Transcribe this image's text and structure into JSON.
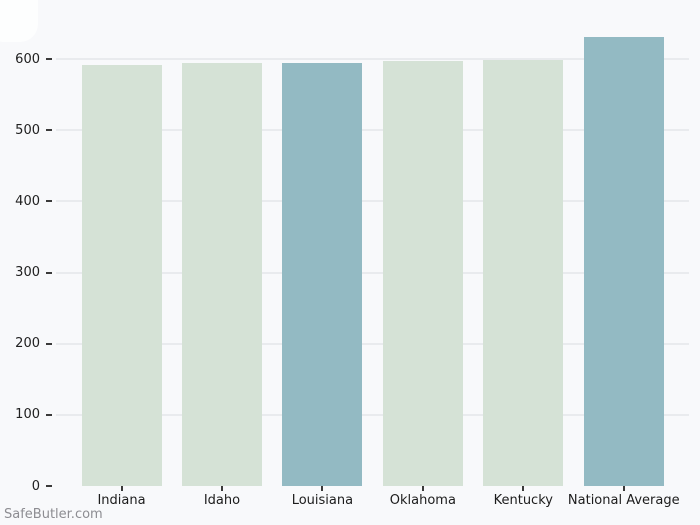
{
  "chart_data": {
    "type": "bar",
    "categories": [
      "Indiana",
      "Idaho",
      "Louisiana",
      "Oklahoma",
      "Kentucky",
      "National Average"
    ],
    "values": [
      592,
      595,
      595,
      597,
      599,
      631
    ],
    "bar_colors": [
      "#d5e2d6",
      "#d5e2d6",
      "#93bac3",
      "#d5e2d6",
      "#d5e2d6",
      "#93bac3"
    ],
    "title": "",
    "xlabel": "",
    "ylabel": "",
    "yticks": [
      0,
      100,
      200,
      300,
      400,
      500,
      600
    ],
    "ylim": [
      0,
      672
    ],
    "grid": "horizontal-light",
    "legend": "none",
    "colors": {
      "bar_green": "#d5e2d6",
      "bar_blue": "#93bac3",
      "background": "#f8f9fb",
      "gridline": "#e9ebee",
      "tick_text": "#212121",
      "watermark_text": "#8d8d92"
    }
  },
  "watermark": {
    "label": "SafeButler.com"
  }
}
